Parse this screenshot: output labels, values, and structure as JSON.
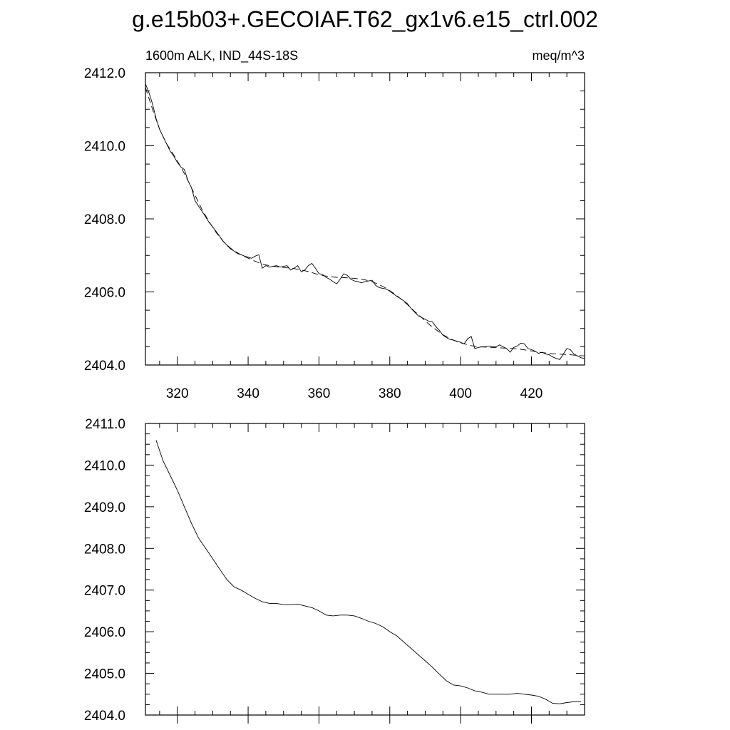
{
  "title": "g.e15b03+.GECOIAF.T62_gx1v6.e15_ctrl.002",
  "chart_data": [
    {
      "type": "line",
      "title": "",
      "left_string": "1600m ALK, IND_44S-18S",
      "right_string": "meq/m^3",
      "xlim": [
        311,
        435
      ],
      "ylim": [
        2404.0,
        2412.0
      ],
      "x_major_ticks": [
        320,
        340,
        360,
        380,
        400,
        420
      ],
      "x_tick_labels": [
        "320",
        "340",
        "360",
        "380",
        "400",
        "420"
      ],
      "y_major_ticks": [
        2404.0,
        2406.0,
        2408.0,
        2410.0,
        2412.0
      ],
      "y_tick_labels": [
        "2404.0",
        "2406.0",
        "2408.0",
        "2410.0",
        "2412.0"
      ],
      "grid": false,
      "series": [
        {
          "style": "solid",
          "x": [
            311,
            312,
            313,
            314,
            315,
            316,
            317,
            318,
            319,
            320,
            321,
            322,
            323,
            324,
            325,
            326,
            327,
            328,
            329,
            330,
            331,
            332,
            333,
            334,
            335,
            336,
            337,
            338,
            339,
            340,
            341,
            342,
            343,
            344,
            345,
            346,
            347,
            348,
            349,
            350,
            351,
            352,
            353,
            354,
            355,
            356,
            357,
            358,
            359,
            360,
            361,
            362,
            363,
            364,
            365,
            366,
            367,
            368,
            369,
            370,
            371,
            372,
            373,
            374,
            375,
            376,
            377,
            378,
            379,
            380,
            381,
            382,
            383,
            384,
            385,
            386,
            387,
            388,
            389,
            390,
            391,
            392,
            393,
            394,
            395,
            396,
            397,
            398,
            399,
            400,
            401,
            402,
            403,
            404,
            405,
            406,
            407,
            408,
            409,
            410,
            411,
            412,
            413,
            414,
            415,
            416,
            417,
            418,
            419,
            420,
            421,
            422,
            423,
            424,
            425,
            426,
            427,
            428,
            429,
            430,
            431,
            432,
            433,
            434,
            435
          ],
          "y": [
            2411.7,
            2411.45,
            2411.15,
            2410.75,
            2410.45,
            2410.25,
            2410.05,
            2409.85,
            2409.72,
            2409.55,
            2409.42,
            2409.35,
            2409.05,
            2408.85,
            2408.5,
            2408.35,
            2408.2,
            2408.05,
            2407.9,
            2407.78,
            2407.65,
            2407.52,
            2407.38,
            2407.28,
            2407.18,
            2407.12,
            2407.05,
            2407.02,
            2406.98,
            2406.95,
            2406.92,
            2406.98,
            2407.02,
            2406.65,
            2406.72,
            2406.68,
            2406.7,
            2406.72,
            2406.68,
            2406.7,
            2406.72,
            2406.6,
            2406.65,
            2406.72,
            2406.55,
            2406.6,
            2406.72,
            2406.78,
            2406.65,
            2406.5,
            2406.48,
            2406.4,
            2406.35,
            2406.28,
            2406.22,
            2406.35,
            2406.5,
            2406.45,
            2406.35,
            2406.3,
            2406.28,
            2406.25,
            2406.28,
            2406.3,
            2406.32,
            2406.18,
            2406.12,
            2406.1,
            2406.08,
            2406.02,
            2405.95,
            2405.88,
            2405.82,
            2405.75,
            2405.68,
            2405.55,
            2405.45,
            2405.35,
            2405.3,
            2405.25,
            2405.2,
            2405.18,
            2405.05,
            2404.95,
            2404.82,
            2404.75,
            2404.7,
            2404.68,
            2404.65,
            2404.62,
            2404.58,
            2404.72,
            2404.78,
            2404.45,
            2404.48,
            2404.5,
            2404.5,
            2404.52,
            2404.5,
            2404.5,
            2404.55,
            2404.5,
            2404.45,
            2404.35,
            2404.48,
            2404.52,
            2404.6,
            2404.58,
            2404.45,
            2404.42,
            2404.38,
            2404.32,
            2404.35,
            2404.3,
            2404.28,
            2404.22,
            2404.18,
            2404.15,
            2404.3,
            2404.45,
            2404.42,
            2404.3,
            2404.25,
            2404.2,
            2404.18
          ]
        },
        {
          "style": "dashed",
          "x": [
            311,
            313,
            315,
            317,
            319,
            321,
            323,
            325,
            327,
            329,
            331,
            333,
            335,
            337,
            339,
            341,
            343,
            345,
            347,
            349,
            351,
            353,
            355,
            357,
            359,
            361,
            363,
            365,
            367,
            369,
            371,
            373,
            375,
            377,
            379,
            381,
            383,
            385,
            387,
            389,
            391,
            393,
            395,
            397,
            399,
            401,
            403,
            405,
            407,
            409,
            411,
            413,
            415,
            417,
            419,
            421,
            423,
            425,
            427,
            429,
            431,
            433,
            435
          ],
          "y": [
            2411.6,
            2411.0,
            2410.45,
            2410.05,
            2409.75,
            2409.42,
            2409.05,
            2408.65,
            2408.25,
            2407.92,
            2407.62,
            2407.38,
            2407.2,
            2407.07,
            2406.97,
            2406.88,
            2406.8,
            2406.74,
            2406.7,
            2406.68,
            2406.66,
            2406.64,
            2406.6,
            2406.56,
            2406.5,
            2406.45,
            2406.42,
            2406.4,
            2406.39,
            2406.38,
            2406.36,
            2406.33,
            2406.28,
            2406.2,
            2406.1,
            2405.97,
            2405.82,
            2405.65,
            2405.47,
            2405.3,
            2405.12,
            2404.97,
            2404.83,
            2404.72,
            2404.64,
            2404.58,
            2404.53,
            2404.5,
            2404.49,
            2404.48,
            2404.47,
            2404.46,
            2404.45,
            2404.43,
            2404.4,
            2404.37,
            2404.34,
            2404.32,
            2404.3,
            2404.29,
            2404.28,
            2404.26,
            2404.25
          ]
        }
      ]
    },
    {
      "type": "line",
      "title": "",
      "xlim": [
        311,
        435
      ],
      "ylim": [
        2404.0,
        2411.0
      ],
      "x_major_ticks": [
        320,
        340,
        360,
        380,
        400,
        420
      ],
      "x_tick_labels": [],
      "y_major_ticks": [
        2404.0,
        2405.0,
        2406.0,
        2407.0,
        2408.0,
        2409.0,
        2410.0,
        2411.0
      ],
      "y_tick_labels": [
        "2404.0",
        "2405.0",
        "2406.0",
        "2407.0",
        "2408.0",
        "2409.0",
        "2410.0",
        "2411.0"
      ],
      "grid": false,
      "series": [
        {
          "style": "solid",
          "x": [
            314,
            316,
            318,
            320,
            322,
            324,
            326,
            328,
            330,
            332,
            334,
            336,
            338,
            340,
            342,
            344,
            346,
            348,
            350,
            352,
            354,
            356,
            358,
            360,
            362,
            364,
            366,
            368,
            370,
            372,
            374,
            376,
            378,
            380,
            382,
            384,
            386,
            388,
            390,
            392,
            394,
            396,
            398,
            400,
            402,
            404,
            406,
            408,
            410,
            412,
            414,
            416,
            418,
            420,
            422,
            424,
            426,
            428,
            430,
            432,
            434
          ],
          "y": [
            2410.6,
            2410.1,
            2409.75,
            2409.4,
            2409.0,
            2408.6,
            2408.25,
            2408.0,
            2407.75,
            2407.5,
            2407.25,
            2407.08,
            2407.0,
            2406.9,
            2406.8,
            2406.72,
            2406.68,
            2406.68,
            2406.65,
            2406.65,
            2406.66,
            2406.62,
            2406.58,
            2406.5,
            2406.4,
            2406.38,
            2406.4,
            2406.4,
            2406.38,
            2406.32,
            2406.25,
            2406.2,
            2406.12,
            2406.0,
            2405.9,
            2405.75,
            2405.6,
            2405.45,
            2405.3,
            2405.15,
            2404.98,
            2404.82,
            2404.72,
            2404.7,
            2404.65,
            2404.58,
            2404.55,
            2404.5,
            2404.5,
            2404.5,
            2404.5,
            2404.52,
            2404.5,
            2404.48,
            2404.45,
            2404.38,
            2404.28,
            2404.27,
            2404.3,
            2404.32,
            2404.32
          ]
        }
      ]
    }
  ]
}
